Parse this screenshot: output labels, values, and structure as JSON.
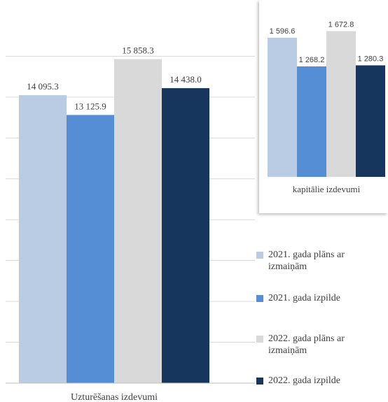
{
  "colors": {
    "series": [
      "#b9cce4",
      "#558ed5",
      "#d9d9d9",
      "#17365d"
    ],
    "grid": "#d9d9d9",
    "axis": "#bfbfbf",
    "text": "#404040"
  },
  "chart_data": [
    {
      "type": "bar",
      "categories": [
        "Uzturēšanas izdevumi"
      ],
      "ylim": [
        0,
        18000
      ],
      "grid": true,
      "series": [
        {
          "name": "2021. gada plāns ar izmaiņām",
          "values": [
            14095.3
          ],
          "label": "14 095.3"
        },
        {
          "name": "2021. gada izpilde",
          "values": [
            13125.9
          ],
          "label": "13 125.9"
        },
        {
          "name": "2022. gada plāns ar izmaiņām",
          "values": [
            15858.3
          ],
          "label": "15 858.3"
        },
        {
          "name": "2022. gada izpilde",
          "values": [
            14438.0
          ],
          "label": "14 438.0"
        }
      ],
      "legend": "right"
    },
    {
      "type": "bar",
      "categories": [
        "kapitālie izdevumi"
      ],
      "ylim": [
        0,
        1950
      ],
      "series": [
        {
          "name": "2021. gada plāns ar izmaiņām",
          "values": [
            1596.6
          ],
          "label": "1 596.6"
        },
        {
          "name": "2021. gada izpilde",
          "values": [
            1268.2
          ],
          "label": "1 268.2"
        },
        {
          "name": "2022. gada plāns ar izmaiņām",
          "values": [
            1672.8
          ],
          "label": "1 672.8"
        },
        {
          "name": "2022. gada izpilde",
          "values": [
            1280.3
          ],
          "label": "1 280.3"
        }
      ]
    }
  ],
  "legend": {
    "items": [
      {
        "lines": [
          "2021. gada plāns ar",
          "izmaiņām"
        ]
      },
      {
        "lines": [
          "2021. gada izpilde"
        ]
      },
      {
        "lines": [
          "2022. gada plāns ar",
          "izmaiņām"
        ]
      },
      {
        "lines": [
          "2022. gada izpilde"
        ]
      }
    ]
  }
}
